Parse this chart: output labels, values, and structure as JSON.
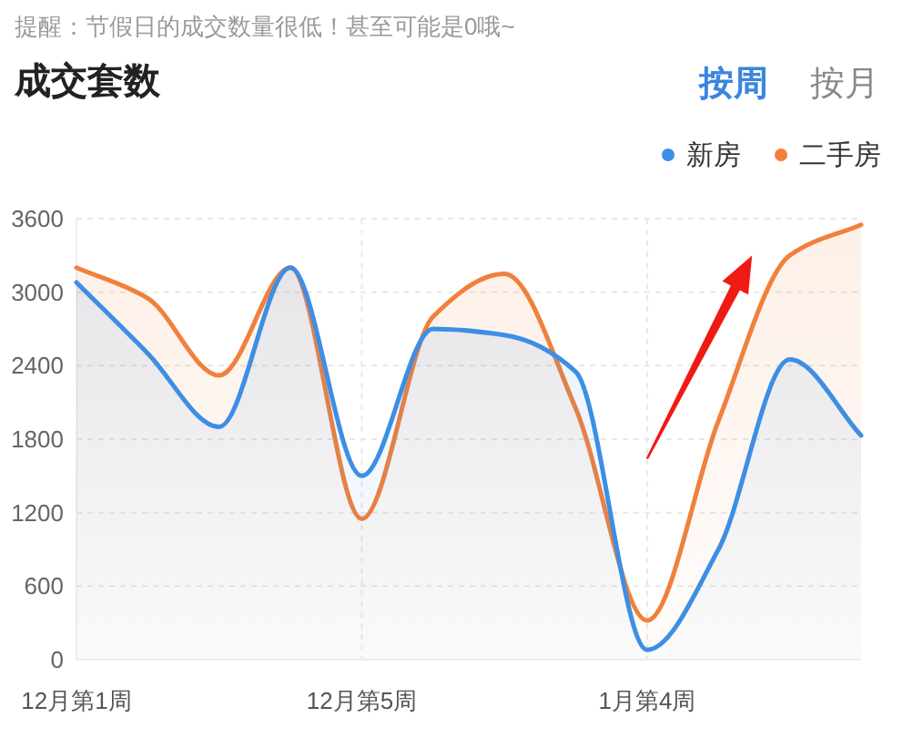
{
  "chart_data": {
    "type": "area",
    "title": "成交套数",
    "subtitle": "提醒：节假日的成交数量很低！甚至可能是0哦~",
    "annotations": [
      "按周",
      "按月"
    ],
    "categories": [
      "12月第1周",
      null,
      null,
      null,
      "12月第5周",
      null,
      null,
      null,
      "1月第4周",
      null,
      null,
      null
    ],
    "series": [
      {
        "name": "新房",
        "color": "#3d8ee4",
        "values": [
          3080,
          2500,
          1900,
          3200,
          1500,
          2700,
          2650,
          2350,
          80,
          900,
          2450,
          1830
        ]
      },
      {
        "name": "二手房",
        "color": "#f0803c",
        "values": [
          3200,
          2950,
          2320,
          3200,
          1150,
          2800,
          3150,
          2050,
          320,
          1950,
          3300,
          3550
        ]
      }
    ],
    "ylim": [
      0,
      3600
    ],
    "yticks": [
      0,
      600,
      1200,
      1800,
      2400,
      3000,
      3600
    ],
    "grid": true,
    "legend": "top right"
  }
}
